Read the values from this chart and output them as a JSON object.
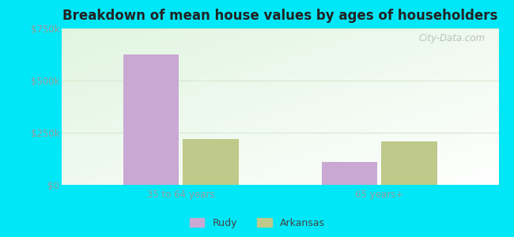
{
  "title": "Breakdown of mean house values by ages of householders",
  "categories": [
    "35 to 64 years",
    "65 years+"
  ],
  "series": {
    "Rudy": [
      625000,
      110000
    ],
    "Arkansas": [
      220000,
      210000
    ]
  },
  "bar_colors": {
    "Rudy": "#c9a8d4",
    "Arkansas": "#bec98a"
  },
  "ylim": [
    0,
    750000
  ],
  "yticks": [
    0,
    250000,
    500000,
    750000
  ],
  "ytick_labels": [
    "$0",
    "$250k",
    "$500k",
    "$750k"
  ],
  "background_color_fig": "#00e8f8",
  "bar_width": 0.28,
  "legend_labels": [
    "Rudy",
    "Arkansas"
  ],
  "watermark": "City-Data.com",
  "tick_color": "#999999",
  "title_color": "#222222",
  "grid_color": "#d8e8d0"
}
